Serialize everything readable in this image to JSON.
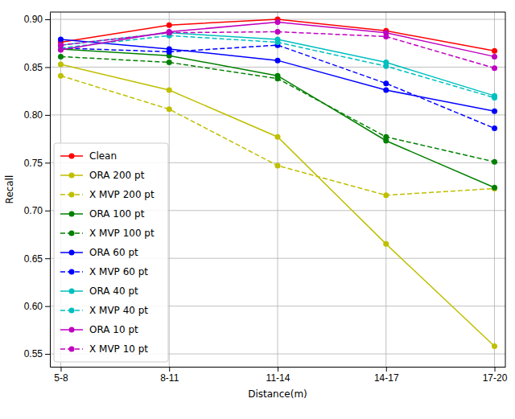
{
  "chart_data": {
    "type": "line",
    "x_label": "Distance(m)",
    "y_label": "Recall",
    "categories": [
      "5-8",
      "8-11",
      "11-14",
      "14-17",
      "17-20"
    ],
    "ylim": [
      0.5366,
      0.9076
    ],
    "yticks": [
      {
        "value": 0.55,
        "label": "0.55"
      },
      {
        "value": 0.6,
        "label": "0.60"
      },
      {
        "value": 0.65,
        "label": "0.65"
      },
      {
        "value": 0.7,
        "label": "0.70"
      },
      {
        "value": 0.75,
        "label": "0.75"
      },
      {
        "value": 0.8,
        "label": "0.80"
      },
      {
        "value": 0.85,
        "label": "0.85"
      },
      {
        "value": 0.9,
        "label": "0.90"
      }
    ],
    "grid": true,
    "legend": "lower left",
    "series": [
      {
        "name": "Clean",
        "color": "#ff0000",
        "line_style": "solid",
        "marker": "circle",
        "values": [
          0.876,
          0.894,
          0.9,
          0.888,
          0.867
        ]
      },
      {
        "name": "ORA 200 pt",
        "color": "#bfbf00",
        "line_style": "solid",
        "marker": "circle",
        "values": [
          0.853,
          0.826,
          0.777,
          0.665,
          0.558
        ]
      },
      {
        "name": "X MVP 200 pt",
        "color": "#bfbf00",
        "line_style": "dashed",
        "marker": "circle",
        "values": [
          0.841,
          0.806,
          0.747,
          0.716,
          0.723
        ]
      },
      {
        "name": "ORA 100 pt",
        "color": "#008000",
        "line_style": "solid",
        "marker": "circle",
        "values": [
          0.869,
          0.862,
          0.841,
          0.773,
          0.724
        ]
      },
      {
        "name": "X MVP 100 pt",
        "color": "#008000",
        "line_style": "dashed",
        "marker": "circle",
        "values": [
          0.861,
          0.855,
          0.838,
          0.777,
          0.751
        ]
      },
      {
        "name": "ORA 60 pt",
        "color": "#0000ff",
        "line_style": "solid",
        "marker": "circle",
        "values": [
          0.879,
          0.869,
          0.857,
          0.826,
          0.804
        ]
      },
      {
        "name": "X MVP 60 pt",
        "color": "#0000ff",
        "line_style": "dashed",
        "marker": "circle",
        "values": [
          0.87,
          0.866,
          0.873,
          0.833,
          0.786
        ]
      },
      {
        "name": "ORA 40 pt",
        "color": "#00bfbf",
        "line_style": "solid",
        "marker": "circle",
        "values": [
          0.873,
          0.886,
          0.879,
          0.855,
          0.82
        ]
      },
      {
        "name": "X MVP 40 pt",
        "color": "#00bfbf",
        "line_style": "dashed",
        "marker": "circle",
        "values": [
          0.87,
          0.883,
          0.876,
          0.851,
          0.818
        ]
      },
      {
        "name": "ORA 10 pt",
        "color": "#bf00bf",
        "line_style": "solid",
        "marker": "circle",
        "values": [
          0.868,
          0.887,
          0.897,
          0.886,
          0.861
        ]
      },
      {
        "name": "X MVP 10 pt",
        "color": "#bf00bf",
        "line_style": "dashed",
        "marker": "circle",
        "values": [
          0.873,
          0.886,
          0.887,
          0.882,
          0.849
        ]
      }
    ]
  }
}
